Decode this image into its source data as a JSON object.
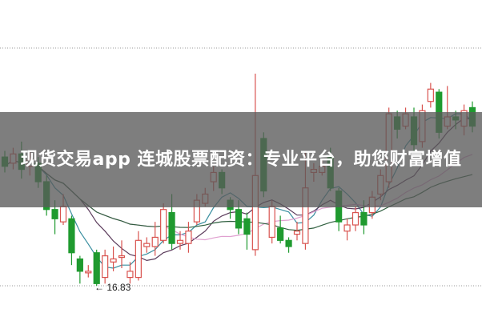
{
  "banner": {
    "title": "现货交易app 连城股票配资：专业平台，助您财富增值"
  },
  "chart_data": {
    "type": "candlestick",
    "low_annotation": "16.83",
    "colors": {
      "up": "#d9534f",
      "down": "#1f9a2f",
      "ma5": "#3a8fa0",
      "ma10": "#5a3a5a",
      "ma20": "#e0a0d0",
      "ma30": "#2f5f3f",
      "grid": "#999999"
    },
    "grid": "dotted horizontal",
    "ohlc": [
      [
        21.0,
        20.7,
        21.2,
        20.5
      ],
      [
        20.8,
        21.1,
        21.3,
        20.6
      ],
      [
        21.1,
        20.6,
        21.5,
        20.3
      ],
      [
        20.7,
        20.9,
        21.2,
        20.4
      ],
      [
        20.8,
        20.2,
        21.0,
        20.0
      ],
      [
        20.2,
        19.3,
        20.4,
        19.1
      ],
      [
        19.3,
        19.0,
        19.6,
        18.5
      ],
      [
        18.9,
        19.4,
        19.8,
        18.8
      ],
      [
        19.0,
        17.9,
        19.1,
        17.5
      ],
      [
        17.7,
        17.3,
        17.8,
        16.9
      ],
      [
        17.3,
        17.3,
        17.5,
        17.1
      ],
      [
        17.9,
        16.9,
        18.0,
        16.83
      ],
      [
        17.1,
        17.8,
        18.0,
        16.9
      ],
      [
        17.6,
        17.7,
        18.1,
        17.3
      ],
      [
        17.8,
        17.8,
        18.3,
        17.4
      ],
      [
        17.1,
        17.3,
        17.6,
        16.9
      ],
      [
        17.1,
        18.3,
        18.6,
        17.0
      ],
      [
        18.1,
        18.2,
        18.4,
        17.9
      ],
      [
        18.1,
        18.4,
        18.9,
        17.8
      ],
      [
        18.3,
        19.3,
        19.5,
        18.2
      ],
      [
        19.2,
        18.2,
        19.8,
        18.0
      ],
      [
        18.2,
        18.3,
        18.6,
        18.0
      ],
      [
        18.2,
        18.6,
        18.9,
        17.9
      ],
      [
        18.9,
        19.6,
        19.8,
        18.8
      ],
      [
        19.5,
        19.8,
        20.0,
        19.4
      ],
      [
        20.2,
        20.5,
        20.7,
        19.9
      ],
      [
        20.5,
        20.0,
        20.6,
        19.8
      ],
      [
        19.6,
        19.3,
        19.7,
        19.0
      ],
      [
        19.3,
        18.7,
        19.6,
        18.5
      ],
      [
        19.0,
        18.5,
        19.2,
        18.0
      ],
      [
        18.0,
        20.4,
        23.7,
        17.8
      ],
      [
        21.6,
        19.9,
        21.8,
        19.7
      ],
      [
        18.4,
        19.4,
        19.6,
        18.2
      ],
      [
        18.7,
        18.3,
        19.1,
        18.2
      ],
      [
        18.3,
        18.1,
        18.4,
        17.9
      ],
      [
        18.5,
        18.6,
        18.9,
        18.3
      ],
      [
        18.2,
        20.0,
        21.2,
        18.0
      ],
      [
        20.5,
        20.6,
        20.8,
        20.2
      ],
      [
        20.5,
        20.7,
        20.9,
        20.4
      ],
      [
        21.0,
        20.0,
        21.3,
        19.9
      ],
      [
        19.9,
        18.9,
        20.0,
        18.6
      ],
      [
        18.6,
        18.8,
        19.0,
        18.3
      ],
      [
        18.8,
        19.2,
        19.4,
        18.6
      ],
      [
        19.2,
        18.8,
        19.6,
        18.5
      ],
      [
        19.2,
        19.7,
        19.9,
        19.0
      ],
      [
        19.8,
        20.4,
        20.6,
        19.6
      ],
      [
        20.2,
        22.4,
        22.6,
        20.0
      ],
      [
        22.3,
        21.9,
        22.5,
        21.6
      ],
      [
        22.0,
        22.4,
        22.6,
        21.9
      ],
      [
        22.3,
        21.4,
        22.6,
        21.2
      ],
      [
        21.5,
        22.5,
        22.7,
        21.3
      ],
      [
        22.8,
        23.2,
        23.4,
        22.6
      ],
      [
        23.1,
        21.8,
        23.2,
        21.6
      ],
      [
        22.0,
        22.3,
        23.3,
        21.9
      ],
      [
        22.3,
        22.2,
        22.5,
        21.9
      ],
      [
        22.0,
        22.5,
        22.7,
        21.7
      ],
      [
        22.6,
        22.0,
        22.8,
        21.8
      ]
    ]
  }
}
